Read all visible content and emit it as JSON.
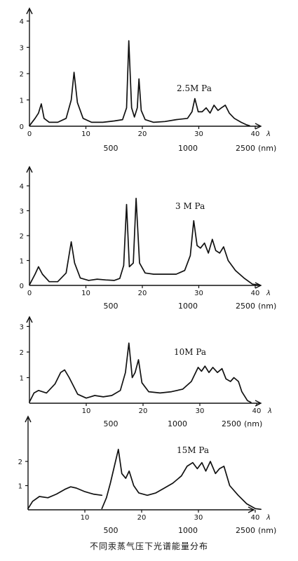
{
  "caption": "不同汞蒸气压下光谱能量分布",
  "chart_data": [
    {
      "type": "line",
      "pressure_label": "2.5M Pa",
      "xlim": [
        0,
        44
      ],
      "ylim": [
        0,
        4.3
      ],
      "x_ticks": [
        0,
        10,
        20,
        30,
        40
      ],
      "y_ticks": [
        1,
        2,
        3,
        4
      ],
      "x_axis_symbol": "λ",
      "wavelength_ticks": [
        "500",
        "1000",
        "2500"
      ],
      "wavelength_unit": "(nm)",
      "points": [
        [
          0,
          0.02
        ],
        [
          1,
          0.3
        ],
        [
          1.6,
          0.5
        ],
        [
          2.1,
          0.85
        ],
        [
          2.6,
          0.3
        ],
        [
          3.5,
          0.15
        ],
        [
          5,
          0.15
        ],
        [
          6.5,
          0.3
        ],
        [
          7.4,
          1.0
        ],
        [
          7.9,
          2.05
        ],
        [
          8.5,
          0.9
        ],
        [
          9.5,
          0.3
        ],
        [
          11,
          0.15
        ],
        [
          13,
          0.15
        ],
        [
          15,
          0.2
        ],
        [
          16.5,
          0.25
        ],
        [
          17.2,
          0.7
        ],
        [
          17.6,
          3.25
        ],
        [
          18.1,
          0.7
        ],
        [
          18.6,
          0.35
        ],
        [
          19.1,
          0.7
        ],
        [
          19.4,
          1.8
        ],
        [
          19.8,
          0.6
        ],
        [
          20.5,
          0.25
        ],
        [
          22,
          0.15
        ],
        [
          24,
          0.18
        ],
        [
          26,
          0.25
        ],
        [
          28,
          0.3
        ],
        [
          28.8,
          0.55
        ],
        [
          29.3,
          1.05
        ],
        [
          29.9,
          0.55
        ],
        [
          30.6,
          0.55
        ],
        [
          31.3,
          0.7
        ],
        [
          32,
          0.5
        ],
        [
          32.7,
          0.8
        ],
        [
          33.4,
          0.6
        ],
        [
          34,
          0.7
        ],
        [
          34.7,
          0.8
        ],
        [
          35.4,
          0.5
        ],
        [
          36.3,
          0.3
        ],
        [
          37.5,
          0.15
        ],
        [
          38.5,
          0.05
        ],
        [
          39,
          0.02
        ]
      ]
    },
    {
      "type": "line",
      "pressure_label": "3 M Pa",
      "xlim": [
        0,
        44
      ],
      "ylim": [
        0,
        4.3
      ],
      "x_ticks": [
        0,
        10,
        20,
        30,
        40
      ],
      "y_ticks": [
        1,
        2,
        3,
        4
      ],
      "x_axis_symbol": "λ",
      "wavelength_ticks": [
        "500",
        "1000",
        "2500"
      ],
      "wavelength_unit": "(nm)",
      "points": [
        [
          0,
          0.02
        ],
        [
          1,
          0.45
        ],
        [
          1.6,
          0.75
        ],
        [
          2.3,
          0.45
        ],
        [
          3.5,
          0.15
        ],
        [
          5,
          0.15
        ],
        [
          6.5,
          0.5
        ],
        [
          7.4,
          1.75
        ],
        [
          8,
          0.9
        ],
        [
          9,
          0.3
        ],
        [
          10.5,
          0.2
        ],
        [
          12,
          0.25
        ],
        [
          13.5,
          0.22
        ],
        [
          15,
          0.2
        ],
        [
          16,
          0.28
        ],
        [
          16.7,
          0.8
        ],
        [
          17.2,
          3.25
        ],
        [
          17.7,
          0.75
        ],
        [
          18.4,
          0.9
        ],
        [
          18.9,
          3.5
        ],
        [
          19.5,
          0.9
        ],
        [
          20.5,
          0.5
        ],
        [
          22,
          0.45
        ],
        [
          24,
          0.45
        ],
        [
          26,
          0.45
        ],
        [
          27.5,
          0.6
        ],
        [
          28.5,
          1.2
        ],
        [
          29.1,
          2.6
        ],
        [
          29.7,
          1.6
        ],
        [
          30.3,
          1.5
        ],
        [
          31,
          1.7
        ],
        [
          31.7,
          1.3
        ],
        [
          32.4,
          1.85
        ],
        [
          33,
          1.4
        ],
        [
          33.7,
          1.3
        ],
        [
          34.4,
          1.55
        ],
        [
          35.2,
          1.0
        ],
        [
          36.5,
          0.6
        ],
        [
          38,
          0.3
        ],
        [
          39.5,
          0.05
        ],
        [
          40.5,
          0.02
        ]
      ]
    },
    {
      "type": "line",
      "pressure_label": "10M Pa",
      "xlim": [
        0,
        42
      ],
      "ylim": [
        0,
        3.3
      ],
      "x_ticks": [
        10,
        20,
        30,
        40
      ],
      "y_ticks": [
        1,
        2,
        3
      ],
      "x_axis_symbol": "λ",
      "wavelength_ticks": [
        "500",
        "1000",
        "2500"
      ],
      "wavelength_unit": "(nm)",
      "points": [
        [
          0,
          0.05
        ],
        [
          0.8,
          0.4
        ],
        [
          1.6,
          0.5
        ],
        [
          3,
          0.4
        ],
        [
          4.5,
          0.75
        ],
        [
          5.5,
          1.2
        ],
        [
          6.2,
          1.3
        ],
        [
          7,
          1.0
        ],
        [
          8.5,
          0.35
        ],
        [
          10,
          0.2
        ],
        [
          11.5,
          0.3
        ],
        [
          13,
          0.25
        ],
        [
          14.5,
          0.3
        ],
        [
          16,
          0.5
        ],
        [
          16.9,
          1.2
        ],
        [
          17.5,
          2.35
        ],
        [
          18.1,
          1.0
        ],
        [
          18.6,
          1.2
        ],
        [
          19.2,
          1.7
        ],
        [
          19.8,
          0.8
        ],
        [
          21,
          0.45
        ],
        [
          23,
          0.4
        ],
        [
          25,
          0.45
        ],
        [
          27,
          0.55
        ],
        [
          28.5,
          0.85
        ],
        [
          29.7,
          1.4
        ],
        [
          30.3,
          1.25
        ],
        [
          30.9,
          1.45
        ],
        [
          31.6,
          1.2
        ],
        [
          32.3,
          1.4
        ],
        [
          33.1,
          1.2
        ],
        [
          33.9,
          1.35
        ],
        [
          34.6,
          0.95
        ],
        [
          35.4,
          0.85
        ],
        [
          36,
          1.0
        ],
        [
          36.8,
          0.85
        ],
        [
          37.4,
          0.45
        ],
        [
          38.4,
          0.1
        ],
        [
          39,
          0.03
        ]
      ]
    },
    {
      "type": "line",
      "pressure_label": "15M Pa",
      "xlim": [
        0,
        44
      ],
      "ylim": [
        0,
        3.2
      ],
      "x_ticks": [
        10,
        20,
        30,
        40
      ],
      "y_ticks": [
        1,
        2
      ],
      "x_axis_symbol": "λ",
      "wavelength_ticks": [
        "500",
        "1000",
        "2500"
      ],
      "wavelength_unit": "(nm)",
      "points_segments": [
        [
          [
            0,
            0.05
          ],
          [
            0.8,
            0.35
          ],
          [
            2,
            0.55
          ],
          [
            3.5,
            0.5
          ],
          [
            5,
            0.65
          ],
          [
            6.5,
            0.85
          ],
          [
            7.5,
            0.95
          ],
          [
            8.5,
            0.9
          ],
          [
            10,
            0.75
          ],
          [
            11.5,
            0.65
          ],
          [
            13,
            0.6
          ]
        ],
        [
          [
            13,
            0.05
          ],
          [
            13.8,
            0.5
          ],
          [
            14.5,
            1.1
          ],
          [
            15.3,
            1.9
          ],
          [
            15.9,
            2.5
          ],
          [
            16.5,
            1.5
          ],
          [
            17.2,
            1.3
          ],
          [
            17.8,
            1.6
          ],
          [
            18.6,
            1.0
          ],
          [
            19.5,
            0.7
          ],
          [
            21,
            0.6
          ],
          [
            22.5,
            0.7
          ],
          [
            24,
            0.9
          ],
          [
            25.5,
            1.1
          ],
          [
            27,
            1.4
          ],
          [
            28,
            1.8
          ],
          [
            29,
            1.95
          ],
          [
            29.8,
            1.7
          ],
          [
            30.6,
            1.95
          ],
          [
            31.3,
            1.6
          ],
          [
            32.1,
            2.0
          ],
          [
            33,
            1.5
          ],
          [
            33.7,
            1.7
          ],
          [
            34.5,
            1.8
          ],
          [
            35.5,
            1.0
          ],
          [
            37,
            0.6
          ],
          [
            38.5,
            0.25
          ],
          [
            40,
            0.05
          ],
          [
            41,
            0.02
          ]
        ]
      ]
    }
  ]
}
